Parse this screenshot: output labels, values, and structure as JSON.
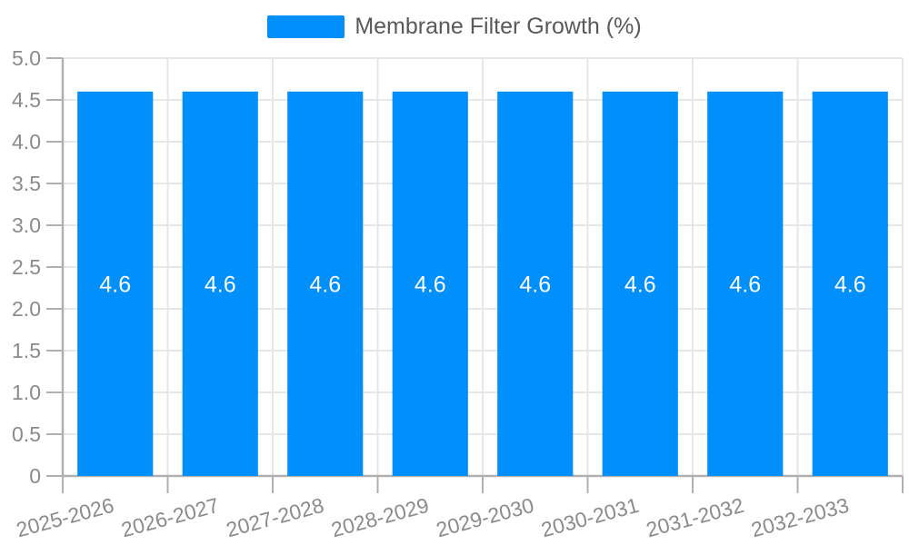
{
  "legend": {
    "label": "Membrane Filter Growth (%)"
  },
  "colors": {
    "bar": "#008FFB",
    "grid": "#e7e7e7",
    "axis": "#b0b0b0",
    "axis_label": "#8b8b8b",
    "legend_text": "#595959",
    "data_label": "#ffffff",
    "background": "#ffffff"
  },
  "chart_data": {
    "type": "bar",
    "title": "",
    "legend_label": "Membrane Filter Growth (%)",
    "legend_position": "top",
    "categories": [
      "2025-2026",
      "2026-2027",
      "2027-2028",
      "2028-2029",
      "2029-2030",
      "2030-2031",
      "2031-2032",
      "2032-2033"
    ],
    "series": [
      {
        "name": "Membrane Filter Growth (%)",
        "values": [
          4.6,
          4.6,
          4.6,
          4.6,
          4.6,
          4.6,
          4.6,
          4.6
        ]
      }
    ],
    "data_labels": [
      "4.6",
      "4.6",
      "4.6",
      "4.6",
      "4.6",
      "4.6",
      "4.6",
      "4.6"
    ],
    "xlabel": "",
    "ylabel": "",
    "ylim": [
      0,
      5
    ],
    "ytick_step": 0.5,
    "ytick_labels": [
      "0",
      "0.5",
      "1.0",
      "1.5",
      "2.0",
      "2.5",
      "3.0",
      "3.5",
      "4.0",
      "4.5",
      "5.0"
    ],
    "grid": true
  }
}
